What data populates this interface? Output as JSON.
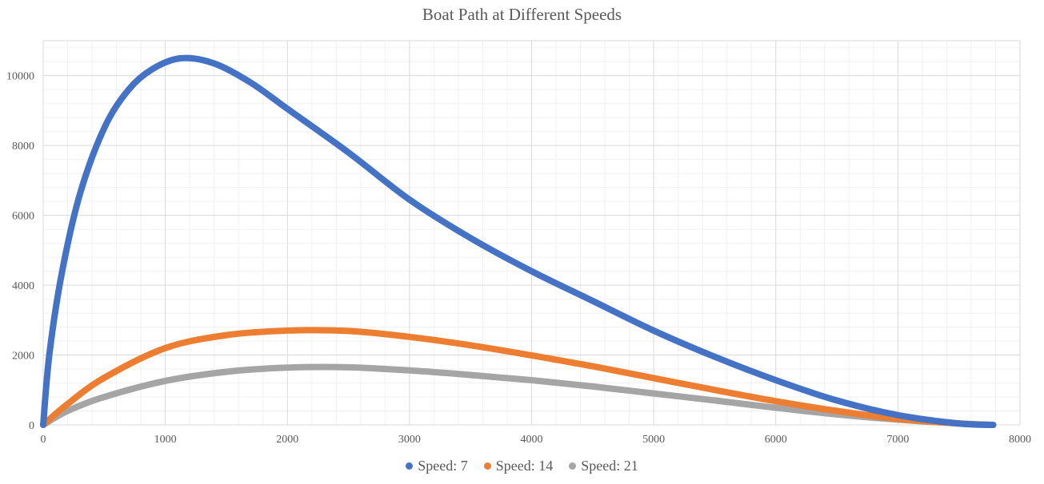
{
  "chart_data": {
    "type": "scatter",
    "title": "Boat Path at Different Speeds",
    "xlabel": "",
    "ylabel": "",
    "xlim": [
      0,
      8000
    ],
    "ylim": [
      0,
      11000
    ],
    "x_ticks": [
      0,
      1000,
      2000,
      3000,
      4000,
      5000,
      6000,
      7000,
      8000
    ],
    "y_ticks": [
      0,
      2000,
      4000,
      6000,
      8000,
      10000
    ],
    "grid": true,
    "legend_position": "bottom",
    "series": [
      {
        "name": "Speed: 7",
        "color": "#4472C4",
        "x": [
          0,
          50,
          150,
          300,
          500,
          700,
          900,
          1130,
          1400,
          1700,
          2000,
          2500,
          3000,
          3500,
          4000,
          4500,
          5000,
          5500,
          6000,
          6500,
          7000,
          7500,
          7780
        ],
        "y": [
          0,
          2000,
          4300,
          6600,
          8500,
          9600,
          10200,
          10500,
          10350,
          9800,
          9050,
          7800,
          6450,
          5350,
          4400,
          3550,
          2700,
          1950,
          1280,
          700,
          280,
          40,
          0
        ]
      },
      {
        "name": "Speed: 14",
        "color": "#ED7D31",
        "x": [
          0,
          200,
          500,
          1000,
          1500,
          2000,
          2500,
          3000,
          3500,
          4000,
          4500,
          5000,
          5500,
          6000,
          6500,
          7000,
          7500,
          7780
        ],
        "y": [
          0,
          600,
          1350,
          2200,
          2570,
          2700,
          2690,
          2520,
          2280,
          1990,
          1680,
          1340,
          1000,
          680,
          400,
          170,
          40,
          0
        ]
      },
      {
        "name": "Speed: 21",
        "color": "#A5A5A5",
        "x": [
          0,
          200,
          500,
          1000,
          1500,
          2000,
          2500,
          3000,
          3500,
          4000,
          4500,
          5000,
          5500,
          6000,
          6500,
          7000,
          7500,
          7780
        ],
        "y": [
          0,
          400,
          800,
          1260,
          1520,
          1640,
          1650,
          1560,
          1430,
          1280,
          1100,
          900,
          700,
          490,
          300,
          150,
          40,
          0
        ]
      }
    ]
  }
}
